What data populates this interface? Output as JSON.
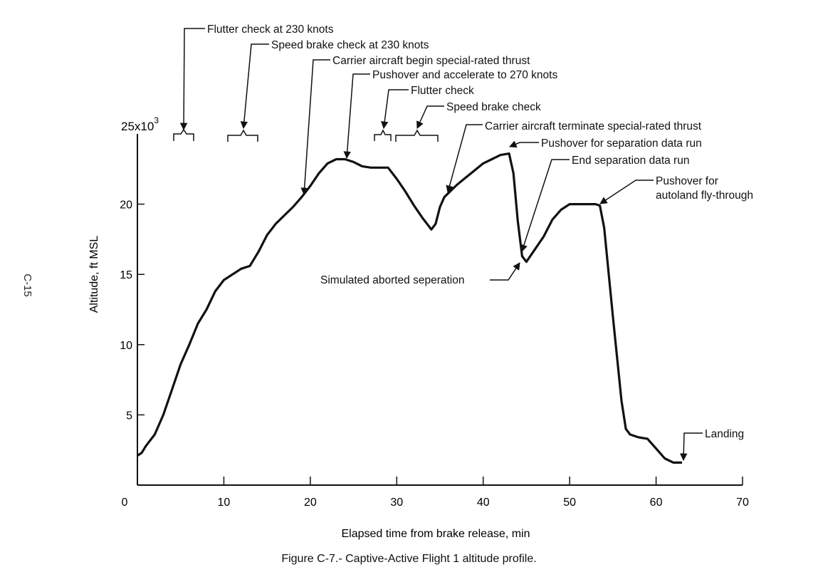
{
  "page_side_label": "C-15",
  "caption": "Figure C-7.- Captive-Active Flight 1 altitude profile.",
  "chart_data": {
    "type": "line",
    "title": "",
    "xlabel": "Elapsed time from brake release, min",
    "ylabel": "Altitude, ft MSL",
    "y_multiplier_label": "25x10",
    "y_multiplier_exp": "3",
    "xlim": [
      0,
      70
    ],
    "ylim": [
      0,
      25
    ],
    "x_ticks": [
      0,
      10,
      20,
      30,
      40,
      50,
      60,
      70
    ],
    "x_tick_labels": [
      "0",
      "10",
      "20",
      "30",
      "40",
      "50",
      "60",
      "70"
    ],
    "y_ticks": [
      5,
      10,
      15,
      20
    ],
    "y_tick_labels": [
      "5",
      "10",
      "15",
      "20"
    ],
    "grid": false,
    "series": [
      {
        "x": [
          0,
          0.5,
          1,
          2,
          3,
          4,
          5,
          6,
          7,
          8,
          9,
          10,
          11,
          12,
          13,
          14,
          15,
          16,
          17,
          18,
          19,
          20,
          21,
          22,
          23,
          24,
          25,
          26,
          27,
          28,
          29,
          30,
          31,
          32,
          33,
          34,
          34.5,
          35,
          35.5,
          36,
          37,
          38,
          39,
          40,
          41,
          42,
          43,
          43.5,
          44,
          44.5,
          45,
          46,
          47,
          48,
          49,
          50,
          51,
          52,
          53,
          53.5,
          54,
          55,
          56,
          56.5,
          57,
          58,
          59,
          60,
          61,
          62,
          63
        ],
        "y": [
          2.1,
          2.3,
          2.8,
          3.6,
          5.0,
          6.8,
          8.6,
          10.0,
          11.5,
          12.5,
          13.8,
          14.6,
          15.0,
          15.4,
          15.6,
          16.6,
          17.8,
          18.6,
          19.2,
          19.8,
          20.5,
          21.3,
          22.2,
          22.9,
          23.2,
          23.2,
          23.0,
          22.7,
          22.6,
          22.6,
          22.6,
          21.8,
          20.9,
          19.9,
          19.0,
          18.2,
          18.6,
          19.8,
          20.5,
          20.8,
          21.4,
          21.9,
          22.4,
          22.9,
          23.2,
          23.5,
          23.6,
          22.2,
          18.8,
          16.3,
          15.9,
          16.8,
          17.7,
          18.9,
          19.6,
          20.0,
          20.0,
          20.0,
          20.0,
          19.9,
          18.3,
          12.0,
          6.0,
          4.0,
          3.6,
          3.4,
          3.3,
          2.6,
          1.9,
          1.6,
          1.6
        ]
      }
    ],
    "annotations": [
      {
        "text": "Flutter check at 230 knots"
      },
      {
        "text": "Speed brake check at 230 knots"
      },
      {
        "text": "Carrier aircraft begin special-rated thrust"
      },
      {
        "text": "Pushover and accelerate to 270 knots"
      },
      {
        "text": "Flutter check"
      },
      {
        "text": "Speed brake check"
      },
      {
        "text": "Carrier aircraft terminate special-rated thrust"
      },
      {
        "text": "Pushover for separation data run"
      },
      {
        "text": "End separation data run"
      },
      {
        "text": "Pushover for"
      },
      {
        "text": "autoland fly-through"
      },
      {
        "text": "Simulated aborted seperation"
      },
      {
        "text": "Landing"
      }
    ]
  }
}
